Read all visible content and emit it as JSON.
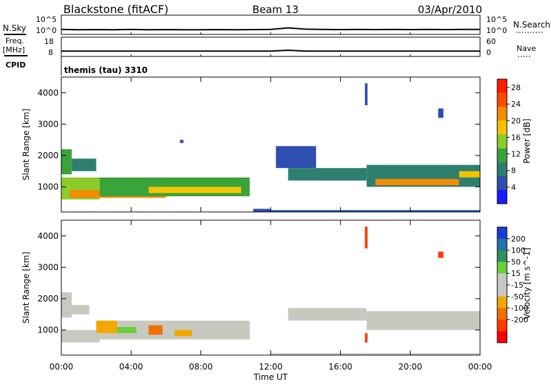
{
  "header": {
    "station": "Blackstone (fitACF)",
    "beam": "Beam 13",
    "date": "03/Apr/2010"
  },
  "panel_labels": {
    "nsky": "N.Sky",
    "freq_line1": "Freq.",
    "freq_line2": "[MHz]",
    "cpid": "CPID",
    "nsearch": "N.Search",
    "nave": "Nave",
    "cpid_value": "themis (tau) 3310"
  },
  "colors": {
    "power_scale": [
      "#1a1aff",
      "#2e4fb0",
      "#2f7f6f",
      "#3aa33a",
      "#8ccc2a",
      "#f2c400",
      "#f28c00",
      "#ff4a00",
      "#ff1a00"
    ],
    "velocity_scale": [
      "#1a3fd0",
      "#2a6fb0",
      "#2e8f60",
      "#6ad03a",
      "#c8c8c0",
      "#c8c8c0",
      "#f2a800",
      "#f27000",
      "#ff3a00",
      "#ff0000"
    ]
  },
  "chart_data": [
    {
      "type": "line",
      "name": "noise",
      "x": [
        0,
        1,
        2,
        3,
        4,
        5,
        6,
        7,
        8,
        9,
        10,
        11,
        12,
        13,
        14,
        15,
        16,
        17,
        18,
        19,
        20,
        21,
        22,
        23,
        24
      ],
      "series": [
        {
          "name": "",
          "values": [
            1.3,
            1.2,
            1.25,
            1.2,
            1.3,
            1.2,
            1.25,
            1.2,
            1.2,
            1.25,
            1.2,
            1.25,
            1.3,
            1.7,
            1.35,
            1.3,
            1.25,
            1.3,
            1.25,
            1.3,
            1.25,
            1.3,
            1.25,
            1.3,
            1.3
          ]
        }
      ],
      "y_tick_labels_left": [
        "10^5",
        "10^0"
      ],
      "y_tick_labels_right": [
        "10^5",
        "10^0"
      ],
      "ylim": [
        0,
        5
      ]
    },
    {
      "type": "line",
      "name": "frequency",
      "x": [
        0,
        1,
        2,
        3,
        4,
        5,
        6,
        7,
        8,
        9,
        10,
        11,
        12,
        13,
        14,
        15,
        16,
        17,
        18,
        19,
        20,
        21,
        22,
        23,
        24
      ],
      "series": [
        {
          "name": "",
          "values": [
            10.8,
            10.8,
            10.8,
            10.8,
            10.8,
            10.8,
            10.8,
            10.8,
            10.8,
            10.8,
            10.8,
            10.8,
            10.8,
            11.2,
            10.8,
            10.8,
            10.8,
            10.8,
            10.8,
            10.8,
            10.8,
            10.8,
            10.8,
            10.8,
            10.8
          ]
        }
      ],
      "y_tick_labels_left": [
        "18",
        "8"
      ],
      "y_tick_labels_right": [
        "60",
        "0"
      ],
      "ylim": [
        8,
        18
      ]
    },
    {
      "type": "heatmap",
      "name": "power",
      "xlabel": "",
      "ylabel": "Slant Range [km]",
      "x_ticks": [
        "00:00",
        "04:00",
        "08:00",
        "12:00",
        "16:00",
        "20:00",
        "00:00"
      ],
      "xlim": [
        0,
        24
      ],
      "ylim": [
        200,
        4500
      ],
      "y_ticks": [
        1000,
        2000,
        3000,
        4000
      ],
      "colorbar_label": "Power [dB]",
      "colorbar_ticks": [
        4,
        8,
        12,
        16,
        20,
        24,
        28
      ],
      "clim": [
        0,
        30
      ],
      "regions": [
        {
          "t0": 0.0,
          "t1": 2.2,
          "r0": 600,
          "r1": 1300,
          "v": 14
        },
        {
          "t0": 0.5,
          "t1": 6.0,
          "r0": 650,
          "r1": 900,
          "v": 22
        },
        {
          "t0": 2.2,
          "t1": 10.8,
          "r0": 700,
          "r1": 1300,
          "v": 12
        },
        {
          "t0": 5.0,
          "t1": 10.3,
          "r0": 800,
          "r1": 1000,
          "v": 18
        },
        {
          "t0": 0.0,
          "t1": 0.6,
          "r0": 1400,
          "r1": 2200,
          "v": 10
        },
        {
          "t0": 0.6,
          "t1": 2.0,
          "r0": 1500,
          "r1": 1900,
          "v": 8
        },
        {
          "t0": 11.0,
          "t1": 12.0,
          "r0": 200,
          "r1": 300,
          "v": 6
        },
        {
          "t0": 12.0,
          "t1": 24.0,
          "r0": 200,
          "r1": 260,
          "v": 5
        },
        {
          "t0": 13.0,
          "t1": 17.5,
          "r0": 1200,
          "r1": 1600,
          "v": 7
        },
        {
          "t0": 12.3,
          "t1": 14.6,
          "r0": 1600,
          "r1": 2300,
          "v": 6
        },
        {
          "t0": 17.5,
          "t1": 24.0,
          "r0": 1000,
          "r1": 1700,
          "v": 9
        },
        {
          "t0": 18.0,
          "t1": 22.8,
          "r0": 1050,
          "r1": 1250,
          "v": 20
        },
        {
          "t0": 22.8,
          "t1": 24.0,
          "r0": 1300,
          "r1": 1500,
          "v": 19
        },
        {
          "t0": 17.4,
          "t1": 17.55,
          "r0": 3600,
          "r1": 4300,
          "v": 6
        },
        {
          "t0": 21.6,
          "t1": 21.9,
          "r0": 3200,
          "r1": 3500,
          "v": 6
        },
        {
          "t0": 6.8,
          "t1": 7.0,
          "r0": 2400,
          "r1": 2500,
          "v": 5
        }
      ]
    },
    {
      "type": "heatmap",
      "name": "velocity",
      "xlabel": "Time UT",
      "ylabel": "Slant Range [km]",
      "x_ticks": [
        "00:00",
        "04:00",
        "08:00",
        "12:00",
        "16:00",
        "20:00",
        "00:00"
      ],
      "xlim": [
        0,
        24
      ],
      "ylim": [
        200,
        4500
      ],
      "y_ticks": [
        1000,
        2000,
        3000,
        4000
      ],
      "colorbar_label": "Velocity [m s^-1]",
      "colorbar_ticks": [
        200,
        100,
        50,
        15,
        -15,
        -50,
        -100,
        -200
      ],
      "regions": [
        {
          "t0": 0.0,
          "t1": 2.2,
          "r0": 600,
          "r1": 1000,
          "v": 0
        },
        {
          "t0": 2.2,
          "t1": 10.8,
          "r0": 700,
          "r1": 1300,
          "v": 0
        },
        {
          "t0": 2.0,
          "t1": 3.2,
          "r0": 900,
          "r1": 1300,
          "v": -40
        },
        {
          "t0": 3.2,
          "t1": 4.3,
          "r0": 900,
          "r1": 1100,
          "v": 30
        },
        {
          "t0": 5.0,
          "t1": 5.8,
          "r0": 850,
          "r1": 1150,
          "v": -60
        },
        {
          "t0": 6.5,
          "t1": 7.5,
          "r0": 800,
          "r1": 1000,
          "v": -40
        },
        {
          "t0": 0.0,
          "t1": 0.6,
          "r0": 1400,
          "r1": 2200,
          "v": 0
        },
        {
          "t0": 0.6,
          "t1": 1.6,
          "r0": 1500,
          "r1": 1800,
          "v": 0
        },
        {
          "t0": 12.0,
          "t1": 24.0,
          "r0": 200,
          "r1": 260,
          "v": 0
        },
        {
          "t0": 13.0,
          "t1": 17.5,
          "r0": 1300,
          "r1": 1700,
          "v": 0
        },
        {
          "t0": 17.5,
          "t1": 24.0,
          "r0": 1000,
          "r1": 1600,
          "v": 0
        },
        {
          "t0": 17.4,
          "t1": 17.55,
          "r0": 3600,
          "r1": 4300,
          "v": -120
        },
        {
          "t0": 21.6,
          "t1": 21.9,
          "r0": 3300,
          "r1": 3500,
          "v": -150
        },
        {
          "t0": 17.4,
          "t1": 17.55,
          "r0": 600,
          "r1": 900,
          "v": -180
        }
      ]
    }
  ]
}
